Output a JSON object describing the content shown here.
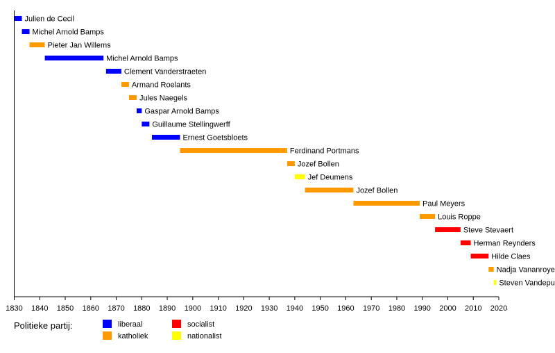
{
  "chart_data": {
    "type": "timeline",
    "title": "",
    "xlabel": "",
    "xlim": [
      1830,
      2020
    ],
    "xticks": [
      1830,
      1840,
      1850,
      1860,
      1870,
      1880,
      1890,
      1900,
      1910,
      1920,
      1930,
      1940,
      1950,
      1960,
      1970,
      1980,
      1990,
      2000,
      2010,
      2020
    ],
    "parties": {
      "liberaal": "#0000ff",
      "katholiek": "#ff9900",
      "socialist": "#ff0000",
      "nationalist": "#ffff00"
    },
    "entries": [
      {
        "name": "Julien de Cecil",
        "start": 1830,
        "end": 1833,
        "party": "liberaal"
      },
      {
        "name": "Michel Arnold Bamps",
        "start": 1833,
        "end": 1836,
        "party": "liberaal"
      },
      {
        "name": "Pieter Jan Willems",
        "start": 1836,
        "end": 1842,
        "party": "katholiek"
      },
      {
        "name": "Michel Arnold Bamps",
        "start": 1842,
        "end": 1865,
        "party": "liberaal"
      },
      {
        "name": "Clement Vanderstraeten",
        "start": 1866,
        "end": 1872,
        "party": "liberaal"
      },
      {
        "name": "Armand Roelants",
        "start": 1872,
        "end": 1875,
        "party": "katholiek"
      },
      {
        "name": "Jules Naegels",
        "start": 1875,
        "end": 1878,
        "party": "katholiek"
      },
      {
        "name": "Gaspar Arnold Bamps",
        "start": 1878,
        "end": 1880,
        "party": "liberaal"
      },
      {
        "name": "Guillaume Stellingwerff",
        "start": 1880,
        "end": 1883,
        "party": "liberaal"
      },
      {
        "name": "Ernest Goetsbloets",
        "start": 1884,
        "end": 1895,
        "party": "liberaal"
      },
      {
        "name": "Ferdinand Portmans",
        "start": 1895,
        "end": 1937,
        "party": "katholiek"
      },
      {
        "name": "Jozef Bollen",
        "start": 1937,
        "end": 1940,
        "party": "katholiek"
      },
      {
        "name": "Jef Deumens",
        "start": 1940,
        "end": 1944,
        "party": "nationalist"
      },
      {
        "name": "Jozef Bollen",
        "start": 1944,
        "end": 1963,
        "party": "katholiek"
      },
      {
        "name": "Paul Meyers",
        "start": 1963,
        "end": 1989,
        "party": "katholiek"
      },
      {
        "name": "Louis Roppe",
        "start": 1989,
        "end": 1995,
        "party": "katholiek"
      },
      {
        "name": "Steve Stevaert",
        "start": 1995,
        "end": 2005,
        "party": "socialist"
      },
      {
        "name": "Herman Reynders",
        "start": 2005,
        "end": 2009,
        "party": "socialist"
      },
      {
        "name": "Hilde Claes",
        "start": 2009,
        "end": 2016,
        "party": "socialist"
      },
      {
        "name": "Nadja Vananroye",
        "start": 2016,
        "end": 2018,
        "party": "katholiek"
      },
      {
        "name": "Steven Vandeput",
        "start": 2018,
        "end": 2019,
        "party": "nationalist"
      }
    ],
    "legend": {
      "title": "Politieke partij:",
      "placement": "bottom-left",
      "items": [
        {
          "label": "liberaal",
          "party": "liberaal"
        },
        {
          "label": "socialist",
          "party": "socialist"
        },
        {
          "label": "katholiek",
          "party": "katholiek"
        },
        {
          "label": "nationalist",
          "party": "nationalist"
        }
      ]
    }
  }
}
